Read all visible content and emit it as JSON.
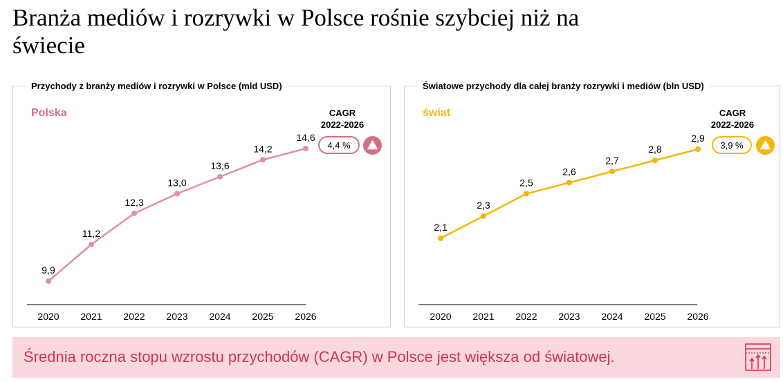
{
  "page_title": "Branża mediów i rozrywki w Polsce rośnie szybciej niż na świecie",
  "chart_data": [
    {
      "type": "line",
      "title": "Przychody z branży mediów i rozrywki w Polsce (mld USD)",
      "series_label": "Polska",
      "color": "#e0909f",
      "accent_color": "#d56f82",
      "x": [
        "2020",
        "2021",
        "2022",
        "2023",
        "2024",
        "2025",
        "2026"
      ],
      "values": [
        9.9,
        11.2,
        12.3,
        13.0,
        13.6,
        14.2,
        14.6
      ],
      "labels": [
        "9,9",
        "11,2",
        "12,3",
        "13,0",
        "13,6",
        "14,2",
        "14,6"
      ],
      "cagr_title": "CAGR",
      "cagr_period": "2022-2026",
      "cagr_value": "4,4 %",
      "cagr_icon": "triangle-up-icon"
    },
    {
      "type": "line",
      "title": "Światowe przychody dla całej branży rozrywki i mediów (bln USD)",
      "series_label": "świat",
      "color": "#f2b705",
      "accent_color": "#f2b705",
      "x": [
        "2020",
        "2021",
        "2022",
        "2023",
        "2024",
        "2025",
        "2026"
      ],
      "values": [
        2.1,
        2.3,
        2.5,
        2.6,
        2.7,
        2.8,
        2.9
      ],
      "labels": [
        "2,1",
        "2,3",
        "2,5",
        "2,6",
        "2,7",
        "2,8",
        "2,9"
      ],
      "cagr_title": "CAGR",
      "cagr_period": "2022-2026",
      "cagr_value": "3,9 %",
      "cagr_icon": "triangle-up-icon"
    }
  ],
  "callout": {
    "text": "Średnia roczna stopu wzrostu przychodów (CAGR) w Polsce jest większa od światowej.",
    "icon": "growth-chart-icon",
    "text_color": "#d0374e",
    "background": "#f8d7dd"
  }
}
